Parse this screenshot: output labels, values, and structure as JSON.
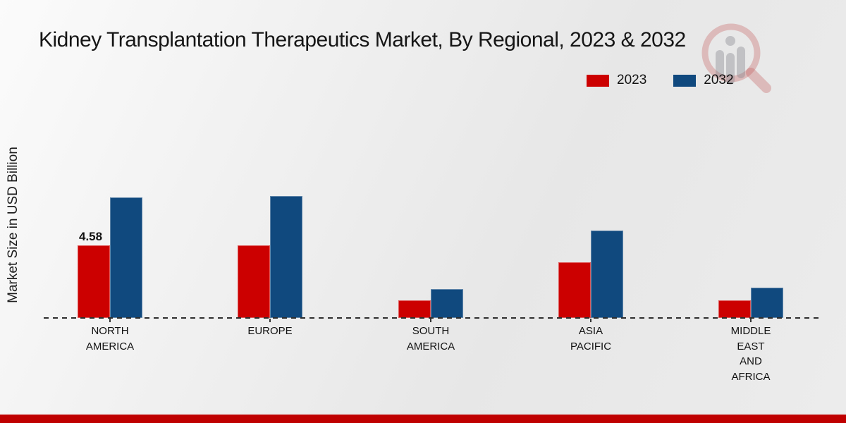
{
  "header": {
    "title": "Kidney Transplantation Therapeutics Market, By Regional, 2023 & 2032"
  },
  "axis": {
    "y_label": "Market Size in USD Billion"
  },
  "legend": {
    "items": [
      {
        "label": "2023",
        "color": "#cc0000"
      },
      {
        "label": "2032",
        "color": "#10497e"
      }
    ]
  },
  "watermark": {
    "name": "magnifier-bar-chart-logo"
  },
  "chart_data": {
    "type": "bar",
    "title": "Kidney Transplantation Therapeutics Market, By Regional, 2023 & 2032",
    "xlabel": "",
    "ylabel": "Market Size in USD Billion",
    "categories": [
      "NORTH AMERICA",
      "EUROPE",
      "SOUTH AMERICA",
      "ASIA PACIFIC",
      "MIDDLE EAST AND AFRICA"
    ],
    "category_lines": [
      [
        "NORTH",
        "AMERICA"
      ],
      [
        "EUROPE"
      ],
      [
        "SOUTH",
        "AMERICA"
      ],
      [
        "ASIA",
        "PACIFIC"
      ],
      [
        "MIDDLE",
        "EAST",
        "AND",
        "AFRICA"
      ]
    ],
    "series": [
      {
        "name": "2023",
        "color": "#cc0000",
        "values": [
          4.58,
          4.6,
          1.1,
          3.5,
          1.1
        ]
      },
      {
        "name": "2032",
        "color": "#10497e",
        "values": [
          7.6,
          7.7,
          1.8,
          5.5,
          1.9
        ]
      }
    ],
    "point_label": {
      "series_index": 0,
      "category_index": 0,
      "text": "4.58"
    },
    "ylim": [
      0,
      8
    ],
    "grid": false,
    "legend_position": "top-right",
    "baseline_style": "dashed"
  },
  "footer": {
    "strip_color": "#bf0000"
  }
}
